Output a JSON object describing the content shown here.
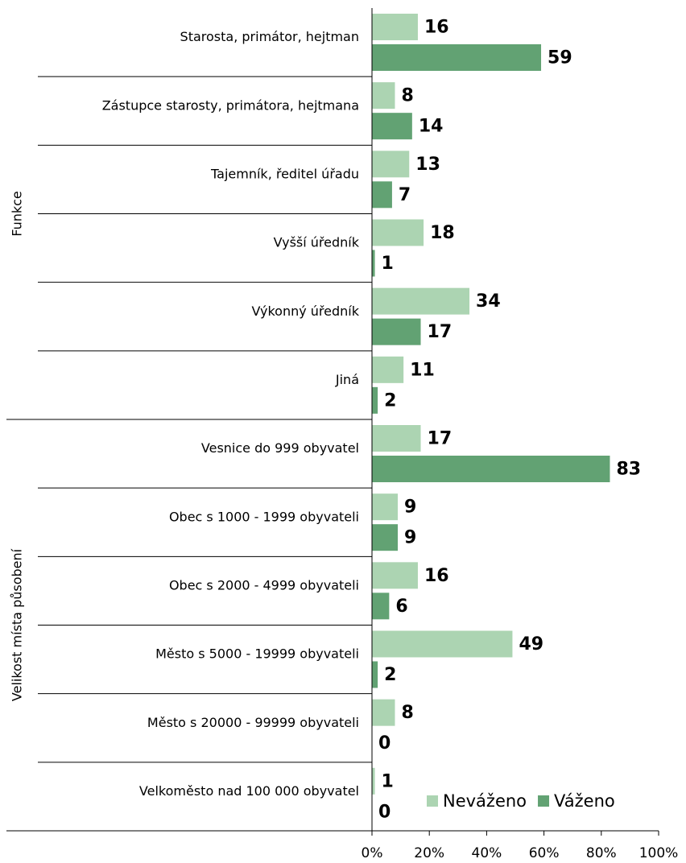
{
  "chart_data": {
    "type": "bar",
    "orientation": "horizontal",
    "groups": [
      {
        "name": "Funkce",
        "categories": [
          "Starosta, primátor, hejtman",
          "Zástupce starosty, primátora, hejtmana",
          "Tajemník, ředitel úřadu",
          "Vyšší úředník",
          "Výkonný úředník",
          "Jiná"
        ]
      },
      {
        "name": "Velikost místa působení",
        "categories": [
          "Vesnice do 999 obyvatel",
          "Obec s 1000 - 1999 obyvateli",
          "Obec s 2000 - 4999 obyvateli",
          "Město s 5000 - 19999 obyvateli",
          "Město s 20000 - 99999 obyvateli",
          "Velkoměsto nad 100 000 obyvatel"
        ]
      }
    ],
    "series": [
      {
        "name": "Neváženo",
        "color": "#acd4b2",
        "values": [
          16,
          8,
          13,
          18,
          34,
          11,
          17,
          9,
          16,
          49,
          8,
          1
        ]
      },
      {
        "name": "Váženo",
        "color": "#62a273",
        "values": [
          59,
          14,
          7,
          1,
          17,
          2,
          83,
          9,
          6,
          2,
          0,
          0
        ]
      }
    ],
    "xlim": [
      0,
      100
    ],
    "xticks": [
      {
        "value": 0,
        "label": "0%"
      },
      {
        "value": 20,
        "label": "20%"
      },
      {
        "value": 40,
        "label": "40%"
      },
      {
        "value": 60,
        "label": "60%"
      },
      {
        "value": 80,
        "label": "80%"
      },
      {
        "value": 100,
        "label": "100%"
      }
    ],
    "legend": "bottom-right"
  }
}
